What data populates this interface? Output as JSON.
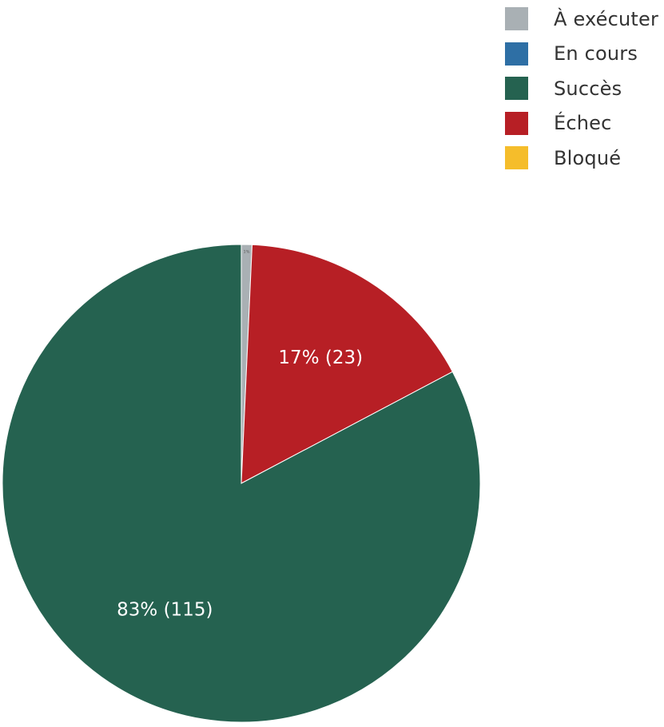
{
  "chart_data": {
    "type": "pie",
    "legend_position": "top-right",
    "slices": [
      {
        "name": "À exécuter",
        "value": 1,
        "label": "1%",
        "color": "#a9b0b4"
      },
      {
        "name": "Échec",
        "value": 23,
        "label": "17% (23)",
        "color": "#b71f25"
      },
      {
        "name": "Succès",
        "value": 115,
        "label": "83% (115)",
        "color": "#256250"
      },
      {
        "name": "En cours",
        "value": 0,
        "label": "",
        "color": "#2e6fa5"
      },
      {
        "name": "Bloqué",
        "value": 0,
        "label": "",
        "color": "#f5bd2b"
      }
    ]
  },
  "legend": {
    "items": [
      {
        "label": "À exécuter",
        "color": "#a9b0b4"
      },
      {
        "label": "En cours",
        "color": "#2e6fa5"
      },
      {
        "label": "Succès",
        "color": "#256250"
      },
      {
        "label": "Échec",
        "color": "#b71f25"
      },
      {
        "label": "Bloqué",
        "color": "#f5bd2b"
      }
    ]
  }
}
